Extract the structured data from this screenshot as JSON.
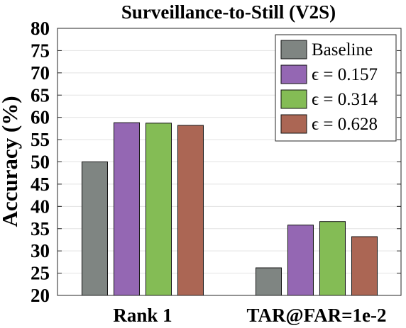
{
  "chart_data": {
    "type": "bar",
    "title": "Surveillance-to-Still (V2S)",
    "xlabel": "",
    "ylabel": "Accuracy (%)",
    "ylim": [
      20,
      80
    ],
    "yticks": [
      "20",
      "25",
      "30",
      "35",
      "40",
      "45",
      "50",
      "55",
      "60",
      "65",
      "70",
      "75",
      "80"
    ],
    "categories": [
      "Rank 1",
      "TAR@FAR=1e-2"
    ],
    "series": [
      {
        "name": "Baseline",
        "color": "#7f8582",
        "values": [
          50.0,
          26.2
        ]
      },
      {
        "name": "ϵ = 0.157",
        "color": "#9467b3",
        "values": [
          58.8,
          35.8
        ]
      },
      {
        "name": "ϵ = 0.314",
        "color": "#84bc55",
        "values": [
          58.7,
          36.6
        ]
      },
      {
        "name": "ϵ = 0.628",
        "color": "#ab6654",
        "values": [
          58.2,
          33.2
        ]
      }
    ],
    "grid": true,
    "legend_position": "top-right"
  }
}
